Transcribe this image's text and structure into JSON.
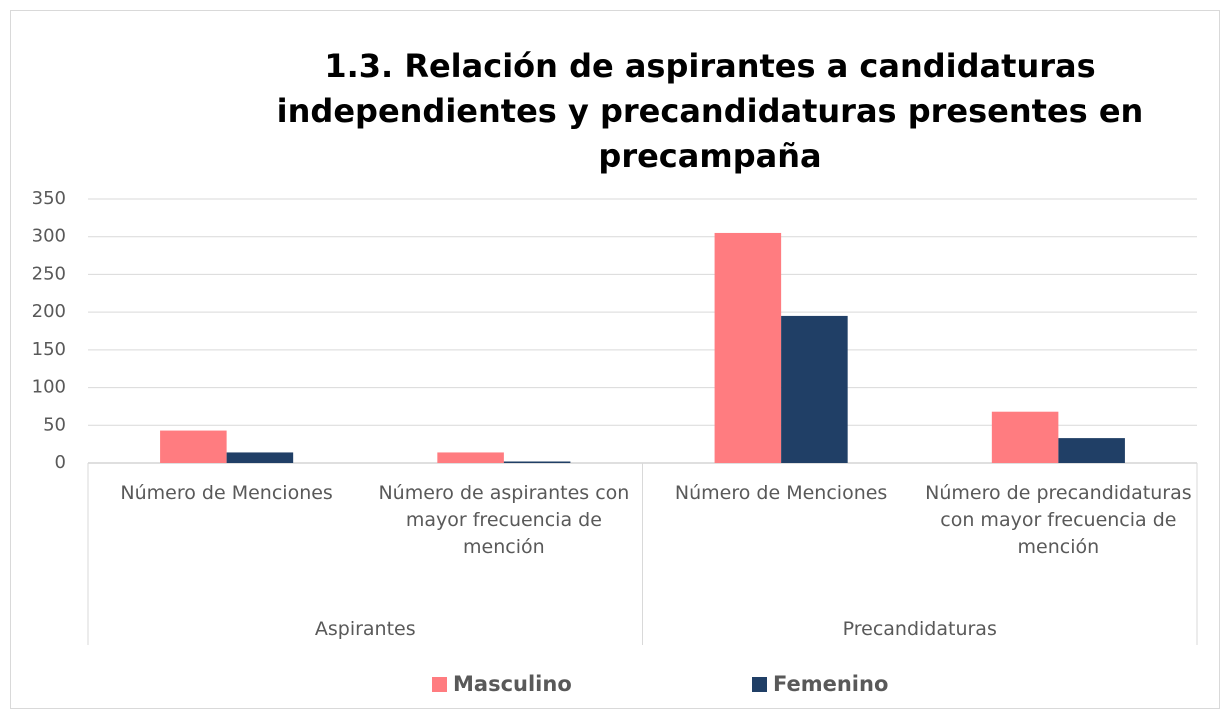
{
  "chart_data": {
    "type": "bar",
    "title": "1.3. Relación de aspirantes a candidaturas independientes y precandidaturas presentes en precampaña",
    "categories": [
      "Número de Menciones",
      "Número de aspirantes con mayor frecuencia de mención",
      "Número de Menciones",
      "Número de precandidaturas con mayor frecuencia de mención"
    ],
    "groups": [
      "Aspirantes",
      "Precandidaturas"
    ],
    "series": [
      {
        "name": "Masculino",
        "color": "#ff7c80",
        "values": [
          43,
          14,
          305,
          68
        ]
      },
      {
        "name": "Femenino",
        "color": "#203f66",
        "values": [
          14,
          2,
          195,
          33
        ]
      }
    ],
    "ylim": [
      0,
      350
    ],
    "yticks": [
      0,
      50,
      100,
      150,
      200,
      250,
      300,
      350
    ],
    "grid": true,
    "legend": "bottom"
  }
}
